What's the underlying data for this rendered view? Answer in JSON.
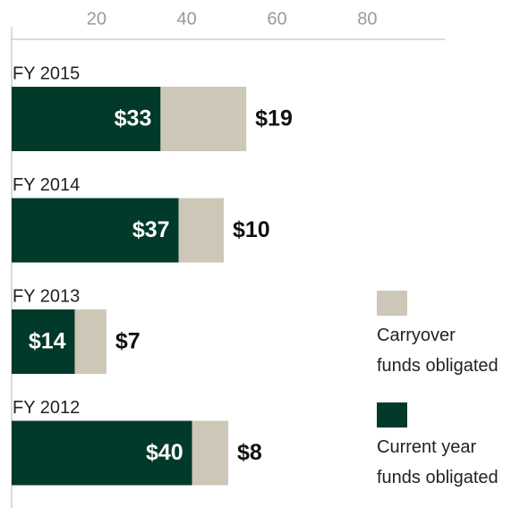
{
  "chart_data": {
    "type": "stacked-bar-horizontal",
    "categories": [
      "FY 2015",
      "FY 2014",
      "FY 2013",
      "FY 2012"
    ],
    "series": [
      {
        "name": "Current year\nfunds obligated",
        "color": "#013a2a",
        "values": [
          33,
          37,
          14,
          40
        ],
        "value_labels": [
          "$33",
          "$37",
          "$14",
          "$40"
        ]
      },
      {
        "name": "Carryover\nfunds obligated",
        "color": "#cdc7b7",
        "values": [
          19,
          10,
          7,
          8
        ],
        "value_labels": [
          "$19",
          "$10",
          "$7",
          "$8"
        ]
      }
    ],
    "xlim": [
      0,
      96
    ],
    "xticks": [
      20,
      40,
      60,
      80
    ]
  }
}
